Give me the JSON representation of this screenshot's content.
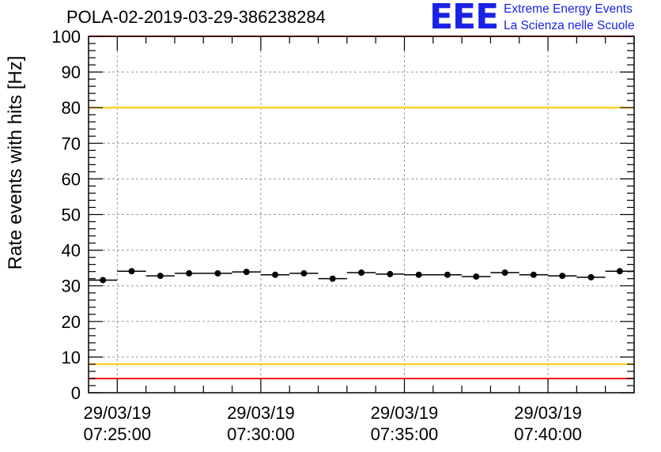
{
  "chart_data": {
    "type": "scatter",
    "title": "POLA-02-2019-03-29-386238284",
    "ylabel": "Rate events with hits [Hz]",
    "xlabel": "",
    "ylim": [
      0,
      100
    ],
    "yticks": [
      "0",
      "10",
      "20",
      "30",
      "40",
      "50",
      "60",
      "70",
      "80",
      "90",
      "100"
    ],
    "xlim": [
      "07:24:00",
      "07:43:00"
    ],
    "xticks": [
      {
        "date": "29/03/19",
        "time": "07:25:00"
      },
      {
        "date": "29/03/19",
        "time": "07:30:00"
      },
      {
        "date": "29/03/19",
        "time": "07:35:00"
      },
      {
        "date": "29/03/19",
        "time": "07:40:00"
      }
    ],
    "grid": true,
    "series": [
      {
        "x": [
          "07:24:30",
          "07:25:30",
          "07:26:30",
          "07:27:30",
          "07:28:30",
          "07:29:30",
          "07:30:30",
          "07:31:30",
          "07:32:30",
          "07:33:30",
          "07:34:30",
          "07:35:30",
          "07:36:30",
          "07:37:30",
          "07:38:30",
          "07:39:30",
          "07:40:30",
          "07:41:30",
          "07:42:30"
        ],
        "values": [
          31.6,
          34.1,
          32.8,
          33.5,
          33.5,
          33.9,
          33.1,
          33.5,
          32.0,
          33.7,
          33.3,
          33.1,
          33.1,
          32.6,
          33.7,
          33.1,
          32.8,
          32.4,
          34.1
        ]
      }
    ],
    "reference_lines": [
      {
        "value": 100,
        "color": "#ff0000"
      },
      {
        "value": 80,
        "color": "#ffcc00"
      },
      {
        "value": 8,
        "color": "#ffcc00"
      },
      {
        "value": 4,
        "color": "#ff0000"
      }
    ]
  },
  "logo": {
    "mark": "EEE",
    "line1": "Extreme Energy Events",
    "line2": "La Scienza nelle Scuole",
    "color": "#1a22e6"
  }
}
